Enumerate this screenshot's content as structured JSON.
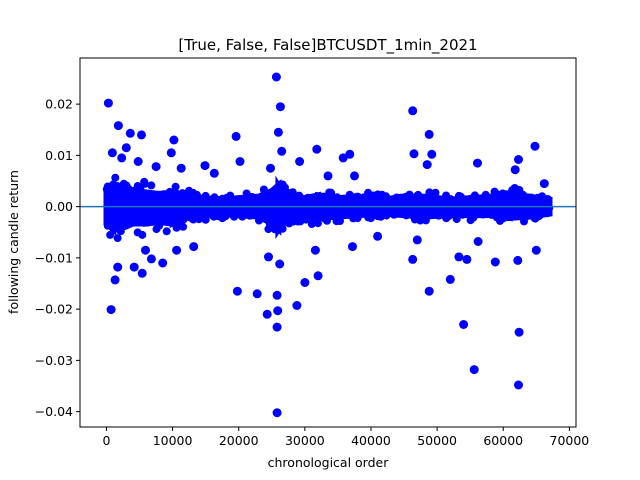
{
  "chart_data": {
    "type": "scatter",
    "title": "[True, False, False]BTCUSDT_1min_2021",
    "xlabel": "chronological order",
    "ylabel": "following candle return",
    "xlim": [
      -4000,
      71000
    ],
    "ylim": [
      -0.043,
      0.029
    ],
    "x_ticks": [
      0,
      10000,
      20000,
      30000,
      40000,
      50000,
      60000,
      70000
    ],
    "x_tick_labels": [
      "0",
      "10000",
      "20000",
      "30000",
      "40000",
      "50000",
      "60000",
      "70000"
    ],
    "y_ticks": [
      0.02,
      0.01,
      0.0,
      -0.01,
      -0.02,
      -0.03,
      -0.04
    ],
    "y_tick_labels": [
      "0.02",
      "0.01",
      "0.00",
      "−0.01",
      "−0.02",
      "−0.03",
      "−0.04"
    ],
    "grid": false,
    "point_color": "#0000ff",
    "reference_line": {
      "y": 0.0,
      "color": "#1f77b4"
    },
    "dense_band": [
      {
        "x": 0,
        "upper": 0.005,
        "lower": -0.006
      },
      {
        "x": 1000,
        "upper": 0.0075,
        "lower": -0.008
      },
      {
        "x": 2000,
        "upper": 0.007,
        "lower": -0.008
      },
      {
        "x": 4000,
        "upper": 0.0055,
        "lower": -0.006
      },
      {
        "x": 6000,
        "upper": 0.005,
        "lower": -0.006
      },
      {
        "x": 8000,
        "upper": 0.0045,
        "lower": -0.0055
      },
      {
        "x": 10000,
        "upper": 0.005,
        "lower": -0.006
      },
      {
        "x": 12000,
        "upper": 0.004,
        "lower": -0.004
      },
      {
        "x": 15000,
        "upper": 0.003,
        "lower": -0.003
      },
      {
        "x": 18000,
        "upper": 0.0025,
        "lower": -0.0025
      },
      {
        "x": 20000,
        "upper": 0.003,
        "lower": -0.003
      },
      {
        "x": 23000,
        "upper": 0.0035,
        "lower": -0.0035
      },
      {
        "x": 25000,
        "upper": 0.0055,
        "lower": -0.006
      },
      {
        "x": 26000,
        "upper": 0.0075,
        "lower": -0.008
      },
      {
        "x": 27000,
        "upper": 0.004,
        "lower": -0.0045
      },
      {
        "x": 30000,
        "upper": 0.003,
        "lower": -0.004
      },
      {
        "x": 32000,
        "upper": 0.004,
        "lower": -0.004
      },
      {
        "x": 35000,
        "upper": 0.003,
        "lower": -0.0035
      },
      {
        "x": 38000,
        "upper": 0.0035,
        "lower": -0.003
      },
      {
        "x": 42000,
        "upper": 0.0025,
        "lower": -0.0025
      },
      {
        "x": 45000,
        "upper": 0.003,
        "lower": -0.003
      },
      {
        "x": 48000,
        "upper": 0.0035,
        "lower": -0.0035
      },
      {
        "x": 52000,
        "upper": 0.0025,
        "lower": -0.003
      },
      {
        "x": 55000,
        "upper": 0.003,
        "lower": -0.003
      },
      {
        "x": 58000,
        "upper": 0.0035,
        "lower": -0.003
      },
      {
        "x": 61000,
        "upper": 0.0045,
        "lower": -0.004
      },
      {
        "x": 64000,
        "upper": 0.0035,
        "lower": -0.0035
      },
      {
        "x": 67000,
        "upper": 0.0025,
        "lower": -0.0025
      }
    ],
    "outliers": [
      {
        "x": 300,
        "y": 0.0202
      },
      {
        "x": 700,
        "y": -0.0201
      },
      {
        "x": 900,
        "y": 0.0105
      },
      {
        "x": 1300,
        "y": -0.0143
      },
      {
        "x": 1800,
        "y": 0.0158
      },
      {
        "x": 1700,
        "y": -0.0118
      },
      {
        "x": 2300,
        "y": 0.0095
      },
      {
        "x": 3000,
        "y": 0.0115
      },
      {
        "x": 3600,
        "y": 0.0143
      },
      {
        "x": 4200,
        "y": -0.0118
      },
      {
        "x": 4800,
        "y": 0.0088
      },
      {
        "x": 5300,
        "y": 0.014
      },
      {
        "x": 5400,
        "y": -0.013
      },
      {
        "x": 5900,
        "y": -0.0085
      },
      {
        "x": 6800,
        "y": -0.0102
      },
      {
        "x": 7500,
        "y": 0.0078
      },
      {
        "x": 8500,
        "y": -0.011
      },
      {
        "x": 9800,
        "y": 0.0105
      },
      {
        "x": 10200,
        "y": 0.013
      },
      {
        "x": 10600,
        "y": -0.0085
      },
      {
        "x": 11300,
        "y": 0.0075
      },
      {
        "x": 13200,
        "y": -0.0078
      },
      {
        "x": 14900,
        "y": 0.008
      },
      {
        "x": 16300,
        "y": 0.0065
      },
      {
        "x": 19600,
        "y": 0.0137
      },
      {
        "x": 19800,
        "y": -0.0165
      },
      {
        "x": 20200,
        "y": 0.0088
      },
      {
        "x": 22800,
        "y": -0.017
      },
      {
        "x": 24300,
        "y": -0.021
      },
      {
        "x": 24500,
        "y": -0.0098
      },
      {
        "x": 24800,
        "y": 0.0075
      },
      {
        "x": 25700,
        "y": 0.0253
      },
      {
        "x": 25800,
        "y": -0.0173
      },
      {
        "x": 25900,
        "y": -0.0203
      },
      {
        "x": 25800,
        "y": -0.0235
      },
      {
        "x": 25800,
        "y": -0.0402
      },
      {
        "x": 26000,
        "y": 0.0145
      },
      {
        "x": 26300,
        "y": 0.0195
      },
      {
        "x": 26200,
        "y": -0.0112
      },
      {
        "x": 26500,
        "y": 0.0108
      },
      {
        "x": 28800,
        "y": -0.0193
      },
      {
        "x": 29200,
        "y": 0.0088
      },
      {
        "x": 30000,
        "y": -0.0148
      },
      {
        "x": 31800,
        "y": 0.0112
      },
      {
        "x": 32000,
        "y": -0.0135
      },
      {
        "x": 31600,
        "y": -0.0085
      },
      {
        "x": 33500,
        "y": 0.006
      },
      {
        "x": 35800,
        "y": 0.0095
      },
      {
        "x": 36800,
        "y": 0.0102
      },
      {
        "x": 37200,
        "y": -0.0078
      },
      {
        "x": 37500,
        "y": 0.006
      },
      {
        "x": 41000,
        "y": -0.0058
      },
      {
        "x": 46300,
        "y": 0.0187
      },
      {
        "x": 46300,
        "y": -0.0103
      },
      {
        "x": 46500,
        "y": 0.0103
      },
      {
        "x": 47000,
        "y": -0.0065
      },
      {
        "x": 48500,
        "y": 0.0082
      },
      {
        "x": 48800,
        "y": 0.0141
      },
      {
        "x": 48800,
        "y": -0.0165
      },
      {
        "x": 49200,
        "y": 0.0102
      },
      {
        "x": 52000,
        "y": -0.0142
      },
      {
        "x": 53300,
        "y": -0.0098
      },
      {
        "x": 54000,
        "y": -0.023
      },
      {
        "x": 54500,
        "y": -0.0103
      },
      {
        "x": 55600,
        "y": -0.0318
      },
      {
        "x": 56100,
        "y": 0.0085
      },
      {
        "x": 56200,
        "y": -0.0068
      },
      {
        "x": 58800,
        "y": -0.0108
      },
      {
        "x": 61800,
        "y": 0.0072
      },
      {
        "x": 62300,
        "y": 0.0092
      },
      {
        "x": 62400,
        "y": -0.0245
      },
      {
        "x": 62300,
        "y": -0.0348
      },
      {
        "x": 62200,
        "y": -0.0105
      },
      {
        "x": 64800,
        "y": 0.0118
      },
      {
        "x": 65000,
        "y": -0.0085
      },
      {
        "x": 66200,
        "y": 0.0045
      }
    ]
  }
}
